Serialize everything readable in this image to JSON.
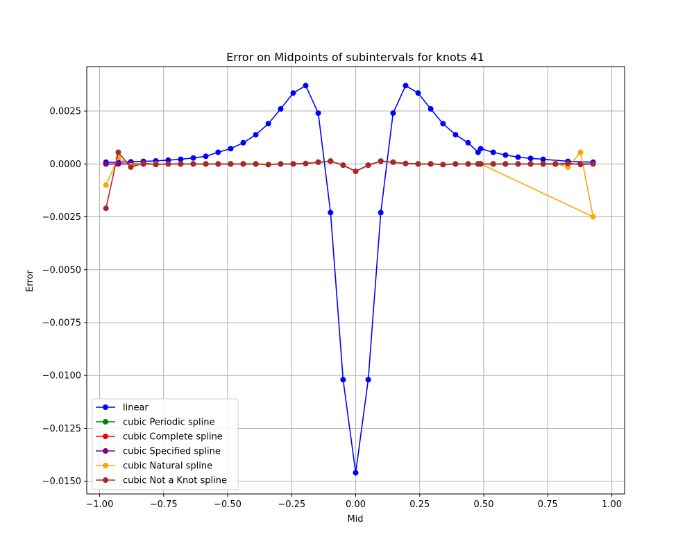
{
  "chart_data": {
    "type": "line",
    "title": "Error on Midpoints of subintervals for knots 41",
    "xlabel": "Mid",
    "ylabel": "Error",
    "xlim": [
      -1.05,
      1.05
    ],
    "ylim": [
      -0.0156,
      0.0046
    ],
    "xticks": [
      -1.0,
      -0.75,
      -0.5,
      -0.25,
      0.0,
      0.25,
      0.5,
      0.75,
      1.0
    ],
    "xtick_labels": [
      "−1.00",
      "−0.75",
      "−0.50",
      "−0.25",
      "0.00",
      "0.25",
      "0.50",
      "0.75",
      "1.00"
    ],
    "yticks": [
      0.0025,
      0.0,
      -0.0025,
      -0.005,
      -0.0075,
      -0.01,
      -0.0125,
      -0.015
    ],
    "ytick_labels": [
      "0.0025",
      "0.0000",
      "−0.0025",
      "−0.0050",
      "−0.0075",
      "−0.0100",
      "−0.0125",
      "−0.0150"
    ],
    "grid": true,
    "legend_position": "lower-left",
    "x": [
      -0.975,
      -0.925,
      -0.875,
      -0.825,
      -0.775,
      -0.725,
      -0.675,
      -0.625,
      -0.575,
      -0.525,
      -0.475,
      -0.425,
      -0.375,
      -0.325,
      -0.275,
      -0.225,
      -0.175,
      -0.125,
      -0.075,
      -0.025,
      0.025,
      0.075,
      0.125,
      0.175,
      0.225,
      0.275,
      0.325,
      0.375,
      0.425,
      0.475,
      0.525,
      0.575,
      0.625,
      0.675,
      0.725,
      0.775,
      0.825,
      0.875,
      0.925
    ],
    "series": [
      {
        "name": "linear",
        "color": "#0000ff",
        "x": [
          -0.975,
          -0.927,
          -0.878,
          -0.829,
          -0.78,
          -0.732,
          -0.683,
          -0.634,
          -0.585,
          -0.537,
          -0.488,
          -0.439,
          -0.39,
          -0.341,
          -0.293,
          -0.244,
          -0.195,
          -0.146,
          -0.098,
          -0.049,
          0.0,
          0.049,
          0.098,
          0.146,
          0.195,
          0.244,
          0.293,
          0.341,
          0.39,
          0.439,
          0.478,
          0.488,
          0.537,
          0.585,
          0.634,
          0.683,
          0.732,
          0.829,
          0.927
        ],
        "values": [
          8e-05,
          8e-05,
          0.0001,
          0.00012,
          0.00014,
          0.00018,
          0.00022,
          0.00028,
          0.00036,
          0.00055,
          0.00072,
          0.001,
          0.00138,
          0.0019,
          0.0026,
          0.00335,
          0.0037,
          0.0024,
          -0.0023,
          -0.0102,
          -0.0146,
          -0.0102,
          -0.0023,
          0.0024,
          0.0037,
          0.00335,
          0.0026,
          0.0019,
          0.00138,
          0.001,
          0.00055,
          0.00072,
          0.00055,
          0.00042,
          0.00032,
          0.00026,
          0.00022,
          0.00012,
          8e-05
        ]
      },
      {
        "name": "cubic Periodic spline",
        "color": "#008000",
        "x": [
          -0.975,
          -0.927,
          -0.878,
          -0.829,
          -0.78,
          -0.732,
          -0.683,
          -0.634,
          -0.585,
          -0.537,
          -0.488,
          -0.439,
          -0.39,
          -0.341,
          -0.293,
          -0.244,
          -0.195,
          -0.146,
          -0.098,
          -0.049,
          0.0,
          0.049,
          0.098,
          0.146,
          0.195,
          0.244,
          0.293,
          0.341,
          0.39,
          0.439,
          0.478,
          0.488,
          0.537,
          0.585,
          0.634,
          0.683,
          0.732,
          0.78,
          0.829,
          0.878,
          0.927
        ],
        "values": [
          0.0,
          0.0,
          0.0,
          0.0,
          0.0,
          0.0,
          0.0,
          0.0,
          0.0,
          0.0,
          0.0,
          0.0,
          0.0,
          -3e-05,
          0.0,
          0.0,
          2e-05,
          8e-05,
          0.00013,
          -6e-05,
          -0.00035,
          -6e-05,
          0.00013,
          8e-05,
          2e-05,
          0.0,
          0.0,
          -3e-05,
          0.0,
          0.0,
          0.0,
          0.0,
          0.0,
          0.0,
          0.0,
          0.0,
          0.0,
          0.0,
          0.0,
          0.0,
          0.0
        ]
      },
      {
        "name": "cubic Complete spline",
        "color": "#ff0000",
        "x": [
          -0.975,
          -0.927,
          -0.878,
          -0.829,
          -0.78,
          -0.732,
          -0.683,
          -0.634,
          -0.585,
          -0.537,
          -0.488,
          -0.439,
          -0.39,
          -0.341,
          -0.293,
          -0.244,
          -0.195,
          -0.146,
          -0.098,
          -0.049,
          0.0,
          0.049,
          0.098,
          0.146,
          0.195,
          0.244,
          0.293,
          0.341,
          0.39,
          0.439,
          0.478,
          0.488,
          0.537,
          0.585,
          0.634,
          0.683,
          0.732,
          0.78,
          0.829,
          0.878,
          0.927
        ],
        "values": [
          0.0,
          0.0,
          0.0,
          0.0,
          0.0,
          0.0,
          0.0,
          0.0,
          0.0,
          0.0,
          0.0,
          0.0,
          0.0,
          -3e-05,
          0.0,
          0.0,
          2e-05,
          8e-05,
          0.00013,
          -6e-05,
          -0.00035,
          -6e-05,
          0.00013,
          8e-05,
          2e-05,
          0.0,
          0.0,
          -3e-05,
          0.0,
          0.0,
          0.0,
          0.0,
          0.0,
          0.0,
          0.0,
          0.0,
          0.0,
          0.0,
          0.0,
          0.0,
          0.0
        ]
      },
      {
        "name": "cubic Specified spline",
        "color": "#800080",
        "x": [
          -0.975,
          -0.927,
          -0.878,
          -0.829,
          -0.78,
          -0.732,
          -0.683,
          -0.634,
          -0.585,
          -0.537,
          -0.488,
          -0.439,
          -0.39,
          -0.341,
          -0.293,
          -0.244,
          -0.195,
          -0.146,
          -0.098,
          -0.049,
          0.0,
          0.049,
          0.098,
          0.146,
          0.195,
          0.244,
          0.293,
          0.341,
          0.39,
          0.439,
          0.478,
          0.488,
          0.537,
          0.585,
          0.634,
          0.683,
          0.732,
          0.78,
          0.829,
          0.878,
          0.927
        ],
        "values": [
          0.0,
          0.0,
          0.0,
          0.0,
          0.0,
          0.0,
          0.0,
          0.0,
          0.0,
          0.0,
          0.0,
          0.0,
          0.0,
          -3e-05,
          0.0,
          0.0,
          2e-05,
          8e-05,
          0.00013,
          -6e-05,
          -0.00035,
          -6e-05,
          0.00013,
          8e-05,
          2e-05,
          0.0,
          0.0,
          -3e-05,
          0.0,
          0.0,
          0.0,
          0.0,
          0.0,
          0.0,
          0.0,
          0.0,
          0.0,
          0.0,
          0.0,
          0.0,
          0.0
        ]
      },
      {
        "name": "cubic Natural spline",
        "color": "#ffa500",
        "x": [
          -0.975,
          -0.927,
          -0.878,
          -0.829,
          -0.78,
          -0.732,
          -0.683,
          -0.634,
          -0.585,
          -0.537,
          -0.488,
          -0.439,
          -0.39,
          -0.341,
          -0.293,
          -0.244,
          -0.195,
          -0.146,
          -0.098,
          -0.049,
          0.0,
          0.049,
          0.098,
          0.146,
          0.195,
          0.244,
          0.293,
          0.341,
          0.39,
          0.439,
          0.478,
          0.488,
          0.927,
          0.878,
          0.829,
          0.78,
          0.732,
          0.683,
          0.634,
          0.585,
          0.537
        ],
        "values": [
          -0.001,
          0.0003,
          -8e-05,
          3e-05,
          0.0,
          0.0,
          0.0,
          0.0,
          0.0,
          0.0,
          0.0,
          0.0,
          0.0,
          -3e-05,
          0.0,
          0.0,
          2e-05,
          8e-05,
          0.00013,
          -6e-05,
          -0.00035,
          -6e-05,
          0.00013,
          8e-05,
          2e-05,
          0.0,
          0.0,
          -3e-05,
          0.0,
          0.0,
          0.0,
          0.0,
          -0.0025,
          0.00055,
          -0.00015,
          3e-05,
          0.0,
          0.0,
          0.0,
          0.0,
          0.0
        ]
      },
      {
        "name": "cubic Not a Knot spline",
        "color": "#a52a2a",
        "x": [
          -0.975,
          -0.927,
          -0.878,
          -0.829,
          -0.78,
          -0.732,
          -0.683,
          -0.634,
          -0.585,
          -0.537,
          -0.488,
          -0.439,
          -0.39,
          -0.341,
          -0.293,
          -0.244,
          -0.195,
          -0.146,
          -0.098,
          -0.049,
          0.0,
          0.049,
          0.098,
          0.146,
          0.195,
          0.244,
          0.293,
          0.341,
          0.39,
          0.439,
          0.478,
          0.488,
          0.537,
          0.585,
          0.634,
          0.683,
          0.732,
          0.78,
          0.829,
          0.878,
          0.927
        ],
        "values": [
          -0.0021,
          0.00055,
          -0.00015,
          3e-05,
          -3e-05,
          0.0,
          0.0,
          0.0,
          0.0,
          0.0,
          0.0,
          0.0,
          0.0,
          -3e-05,
          0.0,
          0.0,
          2e-05,
          8e-05,
          0.00013,
          -6e-05,
          -0.00035,
          -6e-05,
          0.00013,
          8e-05,
          2e-05,
          0.0,
          0.0,
          -3e-05,
          0.0,
          0.0,
          0.0,
          0.0,
          0.0,
          0.0,
          0.0,
          0.0,
          0.0,
          0.0,
          3e-05,
          -3e-05,
          0.0
        ]
      }
    ]
  }
}
